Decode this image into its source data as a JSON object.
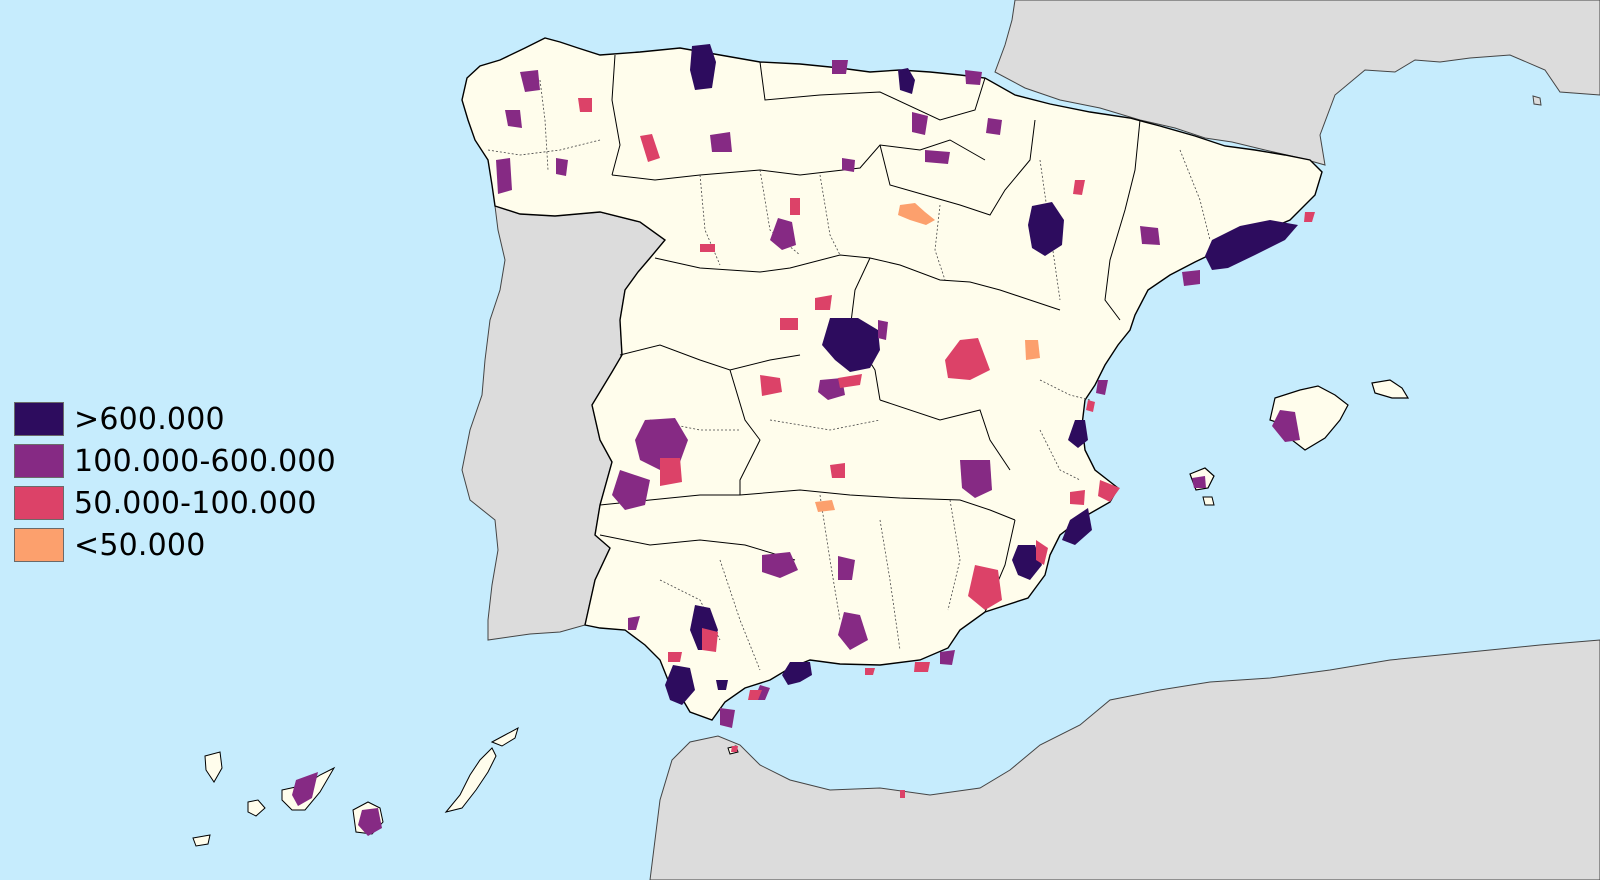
{
  "map": {
    "colors": {
      "sea": "#c6ecfd",
      "land_spain": "#fffdec",
      "land_other": "#dcdcdc",
      "border": "#000000"
    },
    "legend": [
      {
        "label": ">600.000",
        "color": "#2d0c5e"
      },
      {
        "label": "100.000-600.000",
        "color": "#862a84"
      },
      {
        "label": "50.000-100.000",
        "color": "#dc4268"
      },
      {
        "label": "<50.000",
        "color": "#fca06d"
      }
    ]
  }
}
